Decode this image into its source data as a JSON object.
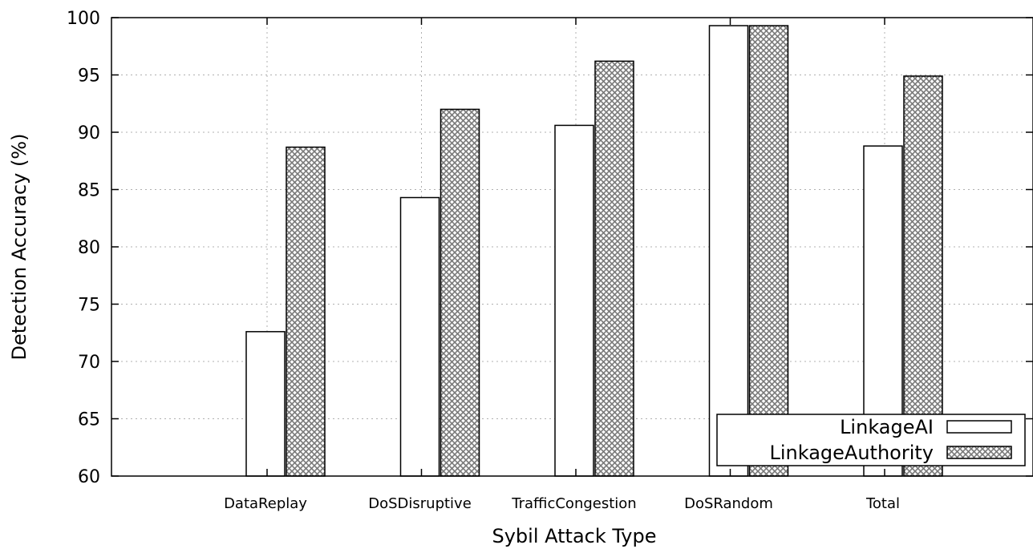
{
  "chart_data": {
    "type": "bar",
    "title": "",
    "xlabel": "Sybil Attack Type",
    "ylabel": "Detection Accuracy (%)",
    "ylim": [
      60,
      100
    ],
    "yticks": [
      "60",
      "65",
      "70",
      "75",
      "80",
      "85",
      "90",
      "95",
      "100"
    ],
    "categories": [
      "DataReplay",
      "DoSDisruptive",
      "TrafficCongestion",
      "DoSRandom",
      "Total"
    ],
    "series": [
      {
        "name": "LinkageAI",
        "values": [
          72.6,
          84.3,
          90.6,
          99.3,
          88.8
        ],
        "fill": "#ffffff"
      },
      {
        "name": "LinkageAuthority",
        "values": [
          88.7,
          92.0,
          96.2,
          99.3,
          94.9
        ],
        "fill": "crosshatch"
      }
    ],
    "grid": true,
    "legend_position": "bottom-right"
  }
}
